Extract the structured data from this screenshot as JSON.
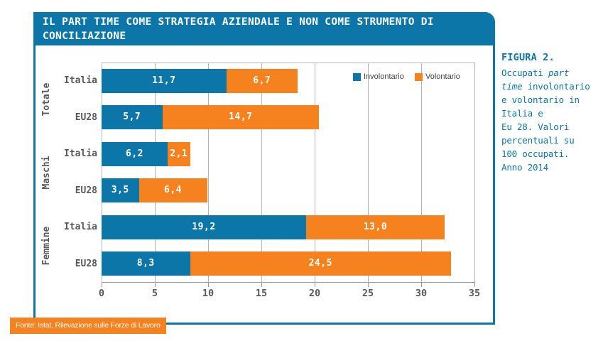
{
  "title": "IL PART TIME COME STRATEGIA AZIENDALE E NON COME STRUMENTO DI\nCONCILIAZIONE",
  "source": "Fonte: Istat, Rilevazione sulle Forze di Lavoro",
  "caption": {
    "heading": "FIGURA 2.",
    "lines": [
      [
        {
          "t": "Occupati ",
          "i": false
        },
        {
          "t": "part",
          "i": true
        }
      ],
      [
        {
          "t": "time",
          "i": true
        },
        {
          "t": " involontario",
          "i": false
        }
      ],
      [
        {
          "t": "e volontario in",
          "i": false
        }
      ],
      [
        {
          "t": "Italia e",
          "i": false
        }
      ],
      [
        {
          "t": "Eu 28. Valori",
          "i": false
        }
      ],
      [
        {
          "t": "percentuali su",
          "i": false
        }
      ],
      [
        {
          "t": "100 occupati.",
          "i": false
        }
      ],
      [
        {
          "t": "Anno 2014",
          "i": false
        }
      ]
    ]
  },
  "colors": {
    "accent_blue": "#0d76a8",
    "accent_orange": "#f5821f",
    "text_gray": "#58595b"
  },
  "chart_data": {
    "type": "bar",
    "orientation": "horizontal",
    "stacked": true,
    "grid": true,
    "legend_position": "top-right-inside",
    "xlim": [
      0,
      35
    ],
    "xticks": [
      0,
      5,
      10,
      15,
      20,
      25,
      30,
      35
    ],
    "xtick_labels": [
      "0",
      "5",
      "10",
      "15",
      "20",
      "25",
      "30",
      "35"
    ],
    "groups": [
      "Totale",
      "Maschi",
      "Femmine"
    ],
    "rows": [
      {
        "group": "Totale",
        "label": "Italia"
      },
      {
        "group": "Totale",
        "label": "EU28"
      },
      {
        "group": "Maschi",
        "label": "Italia"
      },
      {
        "group": "Maschi",
        "label": "EU28"
      },
      {
        "group": "Femmine",
        "label": "Italia"
      },
      {
        "group": "Femmine",
        "label": "EU28"
      }
    ],
    "series": [
      {
        "name": "Involontario",
        "color": "#0d76a8",
        "values": [
          11.7,
          5.7,
          6.2,
          3.5,
          19.2,
          8.3
        ],
        "labels": [
          "11,7",
          "5,7",
          "6,2",
          "3,5",
          "19,2",
          "8,3"
        ]
      },
      {
        "name": "Volontario",
        "color": "#f5821f",
        "values": [
          6.7,
          14.7,
          2.1,
          6.4,
          13.0,
          24.5
        ],
        "labels": [
          "6,7",
          "14,7",
          "2,1",
          "6,4",
          "13,0",
          "24,5"
        ]
      }
    ]
  }
}
